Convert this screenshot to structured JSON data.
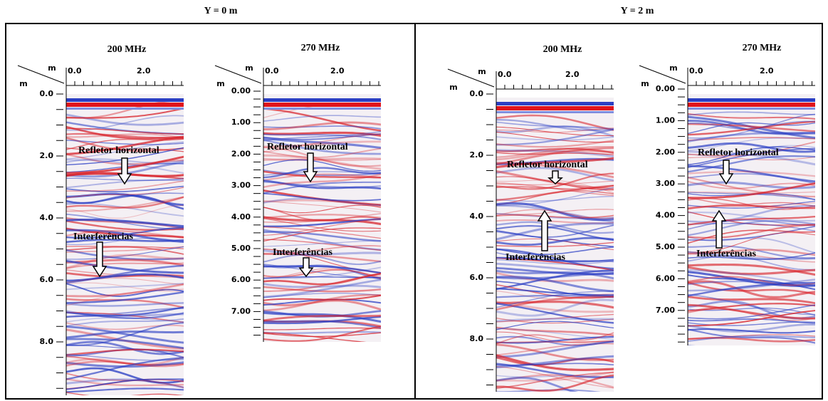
{
  "panels": [
    {
      "title": "Y = 0 m",
      "radargrams": [
        {
          "title": "200 MHz",
          "x_axis_label": "m",
          "y_axis_label": "m",
          "x_ticks": [
            "0.0",
            "2.0"
          ],
          "y_ticks": [
            "0.0",
            "2.0",
            "4.0",
            "6.0",
            "8.0"
          ],
          "annotations": [
            "Refletor horizontal",
            "Interferências"
          ]
        },
        {
          "title": "270 MHz",
          "x_axis_label": "m",
          "y_axis_label": "m",
          "x_ticks": [
            "0.0",
            "2.0"
          ],
          "y_ticks": [
            "0.00",
            "1.00",
            "2.00",
            "3.00",
            "4.00",
            "5.00",
            "6.00",
            "7.00"
          ],
          "annotations": [
            "Refletor horizontal",
            "Interferências"
          ]
        }
      ]
    },
    {
      "title": "Y = 2 m",
      "radargrams": [
        {
          "title": "200 MHz",
          "x_axis_label": "m",
          "y_axis_label": "m",
          "x_ticks": [
            "0.0",
            "2.0"
          ],
          "y_ticks": [
            "0.0",
            "2.0",
            "4.0",
            "6.0",
            "8.0"
          ],
          "annotations": [
            "Refletor horizontal",
            "Interferências"
          ]
        },
        {
          "title": "270 MHz",
          "x_axis_label": "m",
          "y_axis_label": "m",
          "x_ticks": [
            "0.0",
            "2.0"
          ],
          "y_ticks": [
            "0.00",
            "1.00",
            "2.00",
            "3.00",
            "4.00",
            "5.00",
            "6.00",
            "7.00"
          ],
          "annotations": [
            "Refletor horizontal",
            "Interferências"
          ]
        }
      ]
    }
  ]
}
